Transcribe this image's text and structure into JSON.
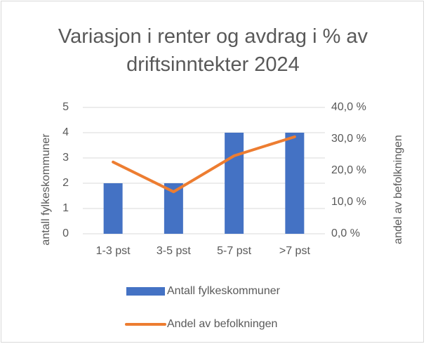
{
  "chart_data": {
    "type": "bar",
    "title": "Variasjon i renter og avdrag i % av driftsinntekter 2024",
    "categories": [
      "1-3 pst",
      "3-5 pst",
      "5-7 pst",
      ">7 pst"
    ],
    "series": [
      {
        "name": "Antall fylkeskommuner",
        "type": "bar",
        "color": "#4472c4",
        "values": [
          2,
          2,
          4,
          4
        ]
      },
      {
        "name": "Andel av befolkningen",
        "type": "line",
        "axis": "y2",
        "color": "#ed7d31",
        "values": [
          22.7,
          13.3,
          24.7,
          30.7
        ]
      }
    ],
    "ylabel": "antall fylkeskommuner",
    "y2label": "andel av befolkningen",
    "ylim": [
      0,
      5
    ],
    "yticks": [
      0,
      1,
      2,
      3,
      4,
      5
    ],
    "y2lim": [
      0,
      40
    ],
    "y2ticks": [
      {
        "value": 0,
        "label": "0,0 %"
      },
      {
        "value": 10,
        "label": "10,0 %"
      },
      {
        "value": 20,
        "label": "20,0 %"
      },
      {
        "value": 30,
        "label": "30,0 %"
      },
      {
        "value": 40,
        "label": "40,0 %"
      }
    ],
    "grid": true,
    "legend": "bottom"
  }
}
